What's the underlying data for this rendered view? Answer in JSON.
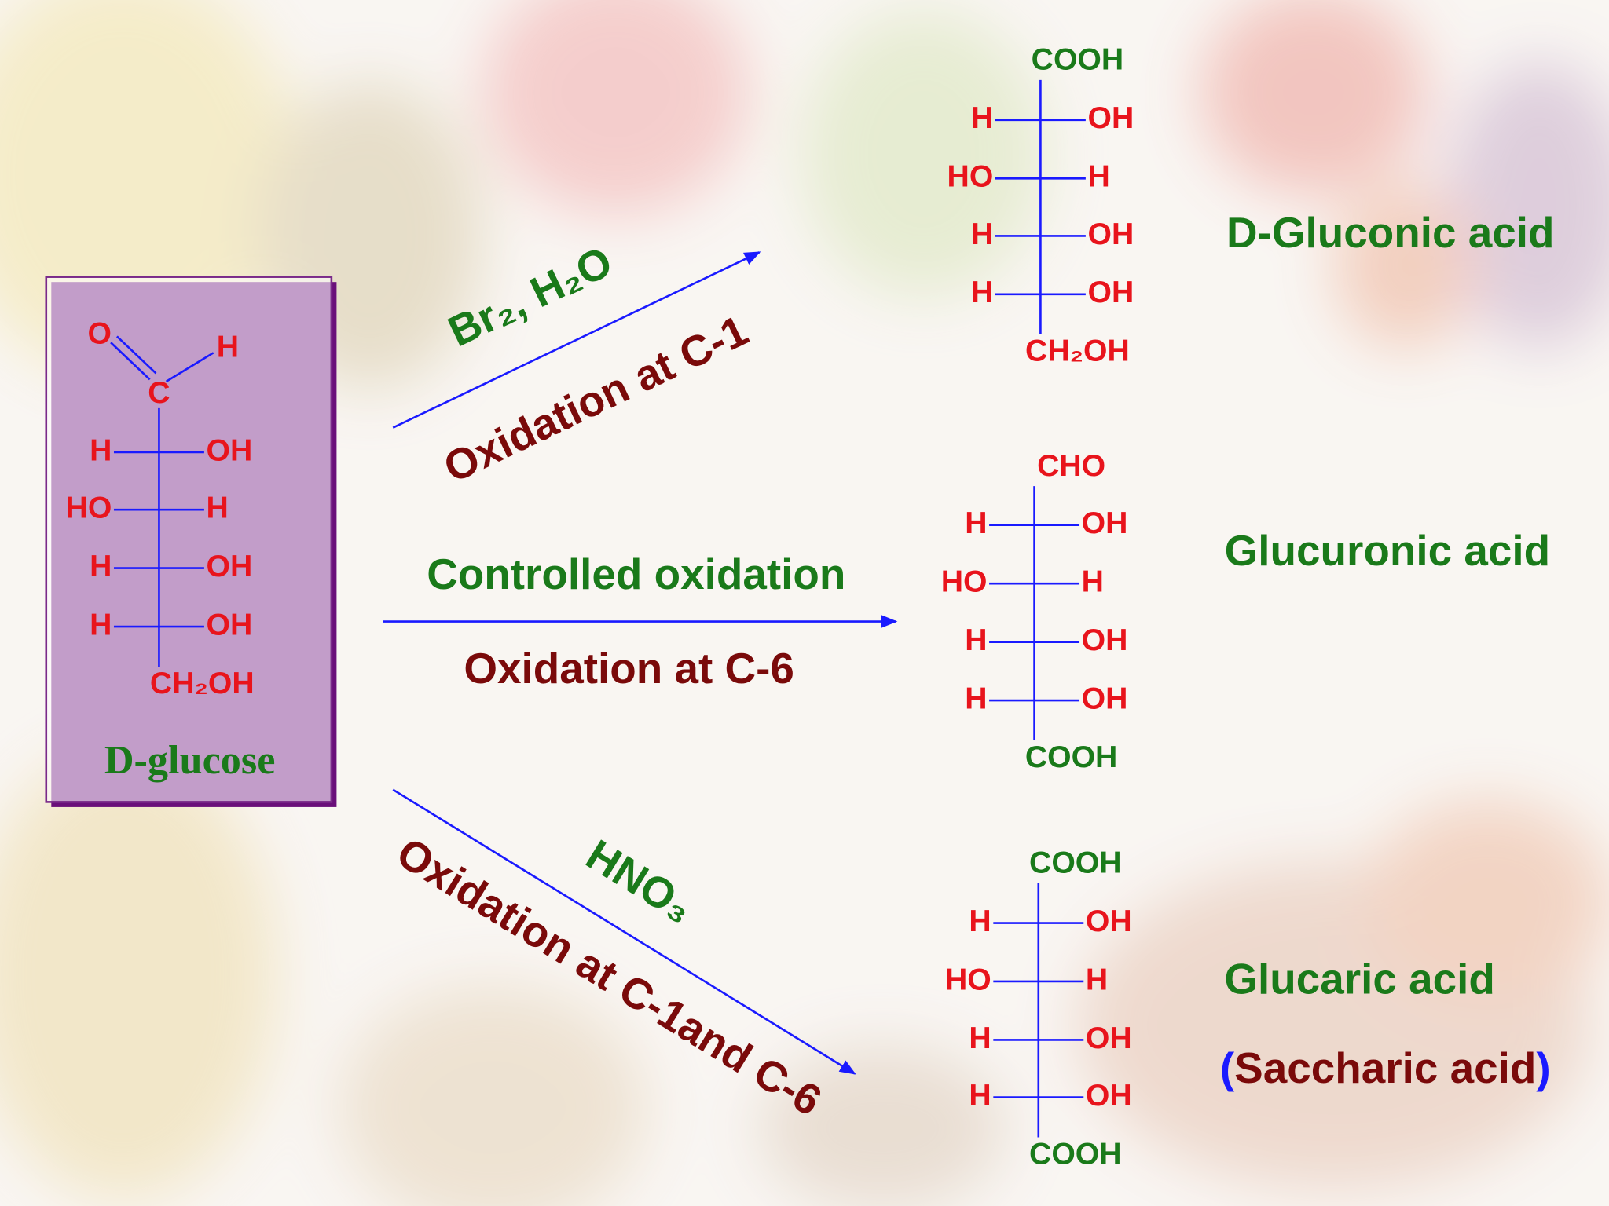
{
  "glucose": {
    "aldehyde_o": "O",
    "aldehyde_h": "H",
    "carbon": "C",
    "rows": [
      [
        "H",
        "OH"
      ],
      [
        "HO",
        "H"
      ],
      [
        "H",
        "OH"
      ],
      [
        "H",
        "OH"
      ]
    ],
    "bottom": "CH₂OH",
    "name": "D-glucose"
  },
  "reactions": [
    {
      "reagent": "Br₂, H₂O",
      "note": "Oxidation at C-1"
    },
    {
      "reagent": "Controlled oxidation",
      "note": "Oxidation at C-6"
    },
    {
      "reagent": "HNO₃",
      "note": "Oxidation at C-1and C-6"
    }
  ],
  "products": [
    {
      "top": "COOH",
      "rows": [
        [
          "H",
          "OH"
        ],
        [
          "HO",
          "H"
        ],
        [
          "H",
          "OH"
        ],
        [
          "H",
          "OH"
        ]
      ],
      "bottom": "CH₂OH",
      "name": "D-Gluconic acid"
    },
    {
      "top": "CHO",
      "rows": [
        [
          "H",
          "OH"
        ],
        [
          "HO",
          "H"
        ],
        [
          "H",
          "OH"
        ],
        [
          "H",
          "OH"
        ]
      ],
      "bottom": "COOH",
      "name": "Glucuronic acid"
    },
    {
      "top": "COOH",
      "rows": [
        [
          "H",
          "OH"
        ],
        [
          "HO",
          "H"
        ],
        [
          "H",
          "OH"
        ],
        [
          "H",
          "OH"
        ]
      ],
      "bottom": "COOH",
      "name": "Glucaric acid",
      "alt_name": "Saccharic acid",
      "alt_name_brackets": [
        "(",
        ")"
      ]
    }
  ]
}
